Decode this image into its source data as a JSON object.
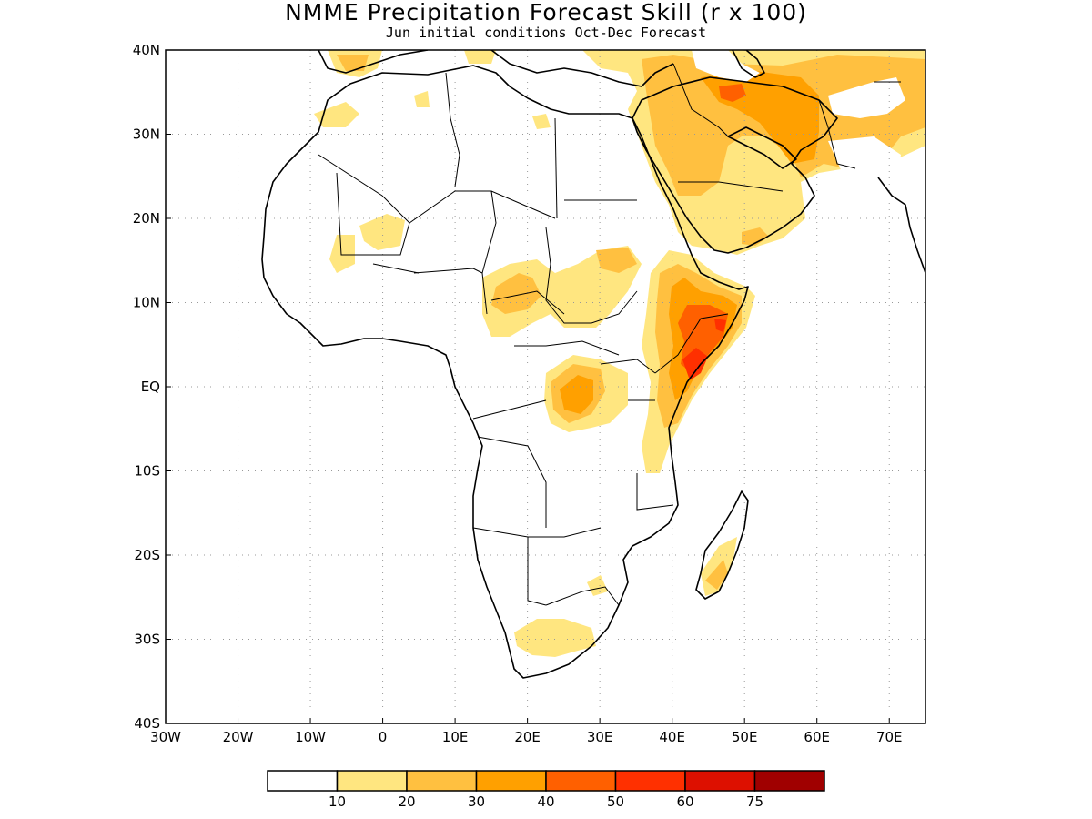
{
  "title": "NMME Precipitation Forecast Skill (r x 100)",
  "subtitle": "Jun initial conditions  Oct-Dec Forecast",
  "map": {
    "lon_range": [
      -30,
      75
    ],
    "lat_range": [
      -40,
      40
    ],
    "x_ticks": [
      {
        "lon": -30,
        "label": "30W"
      },
      {
        "lon": -20,
        "label": "20W"
      },
      {
        "lon": -10,
        "label": "10W"
      },
      {
        "lon": 0,
        "label": "0"
      },
      {
        "lon": 10,
        "label": "10E"
      },
      {
        "lon": 20,
        "label": "20E"
      },
      {
        "lon": 30,
        "label": "30E"
      },
      {
        "lon": 40,
        "label": "40E"
      },
      {
        "lon": 50,
        "label": "50E"
      },
      {
        "lon": 60,
        "label": "60E"
      },
      {
        "lon": 70,
        "label": "70E"
      }
    ],
    "y_ticks": [
      {
        "lat": 40,
        "label": "40N"
      },
      {
        "lat": 30,
        "label": "30N"
      },
      {
        "lat": 20,
        "label": "20N"
      },
      {
        "lat": 10,
        "label": "10N"
      },
      {
        "lat": 0,
        "label": "EQ"
      },
      {
        "lat": -10,
        "label": "10S"
      },
      {
        "lat": -20,
        "label": "20S"
      },
      {
        "lat": -30,
        "label": "30S"
      },
      {
        "lat": -40,
        "label": "40S"
      }
    ],
    "grid": "dotted"
  },
  "colorbar": {
    "colors": [
      "#ffffff",
      "#ffe680",
      "#ffc040",
      "#ffa000",
      "#ff6000",
      "#ff3000",
      "#dd1000",
      "#a00000"
    ],
    "labels": [
      "10",
      "20",
      "30",
      "40",
      "50",
      "60",
      "75"
    ]
  },
  "skill_regions": [
    {
      "level": "10-20",
      "color": "#ffe680",
      "area": "Mediterranean / Middle East band"
    },
    {
      "level": "20-30",
      "color": "#ffc040",
      "area": "Arabian Peninsula and Iran"
    },
    {
      "level": "30-40",
      "color": "#ffa000",
      "area": "Iran / Zagros"
    },
    {
      "level": "30-40",
      "color": "#ffa000",
      "area": "Central Africa (Congo Basin)"
    },
    {
      "level": "40-50",
      "color": "#ff6000",
      "area": "Ethiopia / Somalia"
    },
    {
      "level": "50-60",
      "color": "#ff3000",
      "area": "Horn of Africa coast"
    },
    {
      "level": "10-20",
      "color": "#ffe680",
      "area": "Sahel and South Africa"
    },
    {
      "level": "20-30",
      "color": "#ffc040",
      "area": "Madagascar south"
    }
  ]
}
